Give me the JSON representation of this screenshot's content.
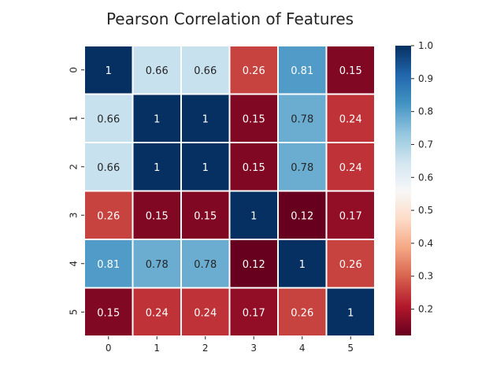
{
  "chart_data": {
    "type": "heatmap",
    "title": "Pearson Correlation of Features",
    "xlabel": "",
    "ylabel": "",
    "x_categories": [
      "0",
      "1",
      "2",
      "3",
      "4",
      "5"
    ],
    "y_categories": [
      "0",
      "1",
      "2",
      "3",
      "4",
      "5"
    ],
    "values": [
      [
        1,
        0.66,
        0.66,
        0.26,
        0.81,
        0.15
      ],
      [
        0.66,
        1,
        1,
        0.15,
        0.78,
        0.24
      ],
      [
        0.66,
        1,
        1,
        0.15,
        0.78,
        0.24
      ],
      [
        0.26,
        0.15,
        0.15,
        1,
        0.12,
        0.17
      ],
      [
        0.81,
        0.78,
        0.78,
        0.12,
        1,
        0.26
      ],
      [
        0.15,
        0.24,
        0.24,
        0.17,
        0.26,
        1
      ]
    ],
    "cell_labels": [
      [
        "1",
        "0.66",
        "0.66",
        "0.26",
        "0.81",
        "0.15"
      ],
      [
        "0.66",
        "1",
        "1",
        "0.15",
        "0.78",
        "0.24"
      ],
      [
        "0.66",
        "1",
        "1",
        "0.15",
        "0.78",
        "0.24"
      ],
      [
        "0.26",
        "0.15",
        "0.15",
        "1",
        "0.12",
        "0.17"
      ],
      [
        "0.81",
        "0.78",
        "0.78",
        "0.12",
        "1",
        "0.26"
      ],
      [
        "0.15",
        "0.24",
        "0.24",
        "0.17",
        "0.26",
        "1"
      ]
    ],
    "colormap": "RdBu",
    "color_range": [
      0.12,
      1.0
    ],
    "colorbar_ticks": [
      "0.2",
      "0.3",
      "0.4",
      "0.5",
      "0.6",
      "0.7",
      "0.8",
      "0.9",
      "1.0"
    ],
    "colorbar_tick_values": [
      0.2,
      0.3,
      0.4,
      0.5,
      0.6,
      0.7,
      0.8,
      0.9,
      1.0
    ],
    "cell_border_color": "#ffffff",
    "grid": false,
    "legend": "colorbar-right"
  }
}
